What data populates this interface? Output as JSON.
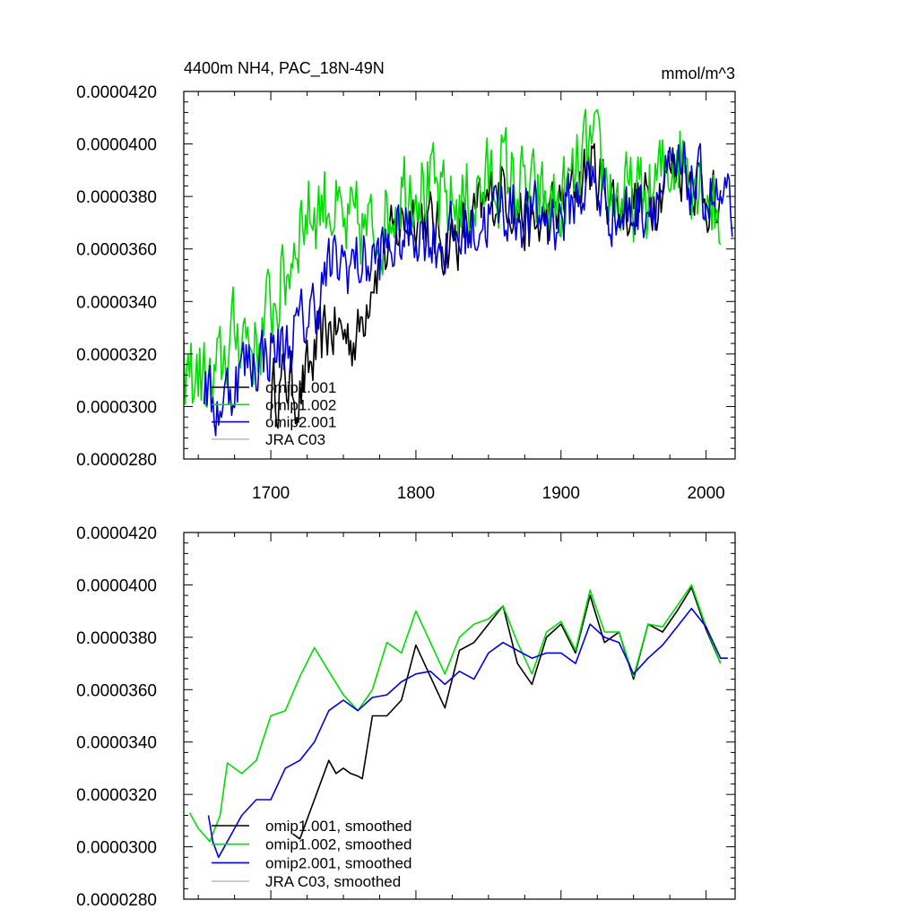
{
  "chart_data": [
    {
      "type": "line",
      "panel": "top",
      "title_left": "4400m NH4, PAC_18N-49N",
      "title_right": "mmol/m^3",
      "xlabel": "",
      "ylabel": "",
      "xlim": [
        1640,
        2020
      ],
      "ylim": [
        2.8e-05,
        4.2e-05
      ],
      "xticks": [
        1700,
        1800,
        1900,
        2000
      ],
      "xtick_labels": [
        "1700",
        "1800",
        "1900",
        "2000"
      ],
      "yticks": [
        2.8e-05,
        3e-05,
        3.2e-05,
        3.4e-05,
        3.6e-05,
        3.8e-05,
        4e-05,
        4.2e-05
      ],
      "ytick_labels": [
        "0.0000280",
        "0.0000300",
        "0.0000320",
        "0.0000340",
        "0.0000360",
        "0.0000380",
        "0.0000400",
        "0.0000420"
      ],
      "legend_placement": "bottom-left",
      "series": [
        {
          "name": "omip1.001",
          "color": "#000000",
          "noise": 1.2e-06,
          "x": [
            1700,
            1710,
            1720,
            1730,
            1740,
            1750,
            1760,
            1770,
            1780,
            1790,
            1800,
            1820,
            1840,
            1860,
            1880,
            1900,
            1920,
            1940,
            1960,
            1980,
            2000,
            2010
          ],
          "values": [
            3.05e-05,
            3.1e-05,
            3.05e-05,
            3.18e-05,
            3.3e-05,
            3.28e-05,
            3.26e-05,
            3.52e-05,
            3.58e-05,
            3.7e-05,
            3.76e-05,
            3.62e-05,
            3.7e-05,
            3.85e-05,
            3.66e-05,
            3.76e-05,
            3.92e-05,
            3.76e-05,
            3.78e-05,
            3.94e-05,
            3.82e-05,
            3.7e-05
          ]
        },
        {
          "name": "omip1.002",
          "color": "#00dd00",
          "noise": 1.6e-06,
          "x": [
            1640,
            1650,
            1660,
            1670,
            1680,
            1690,
            1700,
            1710,
            1720,
            1730,
            1740,
            1750,
            1760,
            1770,
            1780,
            1790,
            1800,
            1820,
            1840,
            1860,
            1880,
            1900,
            1920,
            1940,
            1960,
            1980,
            2000,
            2010
          ],
          "values": [
            3.1e-05,
            3.13e-05,
            3.05e-05,
            3.22e-05,
            3.31e-05,
            3.22e-05,
            3.38e-05,
            3.48e-05,
            3.72e-05,
            3.75e-05,
            3.8e-05,
            3.65e-05,
            3.68e-05,
            3.65e-05,
            3.72e-05,
            3.85e-05,
            3.88e-05,
            3.75e-05,
            3.8e-05,
            3.9e-05,
            3.78e-05,
            3.76e-05,
            3.97e-05,
            3.78e-05,
            3.78e-05,
            3.98e-05,
            3.85e-05,
            3.7e-05
          ]
        },
        {
          "name": "omip2.001",
          "color": "#0000dd",
          "noise": 1.2e-06,
          "x": [
            1654,
            1660,
            1670,
            1680,
            1690,
            1700,
            1710,
            1720,
            1730,
            1740,
            1750,
            1760,
            1770,
            1780,
            1790,
            1800,
            1820,
            1840,
            1860,
            1880,
            1900,
            1920,
            1940,
            1960,
            1980,
            2000,
            2018
          ],
          "values": [
            3.1e-05,
            2.98e-05,
            3.05e-05,
            3.15e-05,
            3.18e-05,
            3.22e-05,
            3.22e-05,
            3.3e-05,
            3.38e-05,
            3.52e-05,
            3.55e-05,
            3.55e-05,
            3.55e-05,
            3.6e-05,
            3.64e-05,
            3.68e-05,
            3.62e-05,
            3.68e-05,
            3.76e-05,
            3.72e-05,
            3.72e-05,
            3.86e-05,
            3.72e-05,
            3.78e-05,
            3.88e-05,
            3.82e-05,
            3.72e-05
          ]
        },
        {
          "name": "JRA C03",
          "color": "#c0c0c0",
          "x": [],
          "values": []
        }
      ]
    },
    {
      "type": "line",
      "panel": "bottom",
      "xlabel": "",
      "ylabel": "",
      "xlim": [
        1640,
        2020
      ],
      "ylim": [
        2.8e-05,
        4.2e-05
      ],
      "xticks": [
        1700,
        1800,
        1900,
        2000
      ],
      "yticks": [
        2.8e-05,
        3e-05,
        3.2e-05,
        3.4e-05,
        3.6e-05,
        3.8e-05,
        4e-05,
        4.2e-05
      ],
      "ytick_labels": [
        "0.0000280",
        "0.0000300",
        "0.0000320",
        "0.0000340",
        "0.0000360",
        "0.0000380",
        "0.0000400",
        "0.0000420"
      ],
      "legend_placement": "bottom-left",
      "series": [
        {
          "name": "omip1.001, smoothed",
          "color": "#000000",
          "x": [
            1715,
            1720,
            1730,
            1740,
            1745,
            1750,
            1755,
            1760,
            1763,
            1770,
            1780,
            1790,
            1800,
            1810,
            1820,
            1830,
            1840,
            1850,
            1860,
            1870,
            1880,
            1890,
            1900,
            1910,
            1920,
            1930,
            1940,
            1950,
            1960,
            1970,
            1980,
            1990,
            2000,
            2010
          ],
          "values": [
            3.05e-05,
            3.03e-05,
            3.18e-05,
            3.33e-05,
            3.28e-05,
            3.3e-05,
            3.28e-05,
            3.27e-05,
            3.26e-05,
            3.5e-05,
            3.5e-05,
            3.56e-05,
            3.77e-05,
            3.65e-05,
            3.53e-05,
            3.75e-05,
            3.78e-05,
            3.85e-05,
            3.92e-05,
            3.7e-05,
            3.62e-05,
            3.8e-05,
            3.85e-05,
            3.74e-05,
            3.96e-05,
            3.78e-05,
            3.82e-05,
            3.64e-05,
            3.85e-05,
            3.82e-05,
            3.9e-05,
            3.99e-05,
            3.83e-05,
            3.7e-05
          ]
        },
        {
          "name": "omip1.002, smoothed",
          "color": "#00dd00",
          "x": [
            1644,
            1650,
            1658,
            1665,
            1670,
            1680,
            1690,
            1700,
            1710,
            1720,
            1730,
            1740,
            1750,
            1760,
            1770,
            1780,
            1790,
            1800,
            1810,
            1820,
            1830,
            1840,
            1850,
            1860,
            1870,
            1880,
            1890,
            1900,
            1910,
            1920,
            1930,
            1940,
            1950,
            1960,
            1970,
            1980,
            1990,
            2000,
            2010
          ],
          "values": [
            3.13e-05,
            3.07e-05,
            3.02e-05,
            3.12e-05,
            3.32e-05,
            3.28e-05,
            3.33e-05,
            3.5e-05,
            3.52e-05,
            3.65e-05,
            3.76e-05,
            3.67e-05,
            3.58e-05,
            3.52e-05,
            3.6e-05,
            3.78e-05,
            3.74e-05,
            3.9e-05,
            3.78e-05,
            3.66e-05,
            3.8e-05,
            3.85e-05,
            3.87e-05,
            3.92e-05,
            3.78e-05,
            3.66e-05,
            3.82e-05,
            3.86e-05,
            3.75e-05,
            3.98e-05,
            3.82e-05,
            3.82e-05,
            3.65e-05,
            3.85e-05,
            3.84e-05,
            3.92e-05,
            4e-05,
            3.84e-05,
            3.7e-05
          ]
        },
        {
          "name": "omip2.001, smoothed",
          "color": "#0000dd",
          "x": [
            1657,
            1660,
            1664,
            1670,
            1680,
            1690,
            1700,
            1710,
            1720,
            1730,
            1740,
            1750,
            1760,
            1770,
            1780,
            1790,
            1800,
            1810,
            1820,
            1830,
            1840,
            1850,
            1860,
            1870,
            1880,
            1890,
            1900,
            1910,
            1920,
            1930,
            1940,
            1950,
            1960,
            1970,
            1980,
            1990,
            2000,
            2010,
            2015
          ],
          "values": [
            3.12e-05,
            3.02e-05,
            2.96e-05,
            3.02e-05,
            3.12e-05,
            3.18e-05,
            3.18e-05,
            3.3e-05,
            3.33e-05,
            3.4e-05,
            3.52e-05,
            3.56e-05,
            3.52e-05,
            3.57e-05,
            3.58e-05,
            3.63e-05,
            3.66e-05,
            3.67e-05,
            3.62e-05,
            3.67e-05,
            3.64e-05,
            3.74e-05,
            3.78e-05,
            3.75e-05,
            3.72e-05,
            3.74e-05,
            3.74e-05,
            3.7e-05,
            3.85e-05,
            3.8e-05,
            3.78e-05,
            3.66e-05,
            3.72e-05,
            3.77e-05,
            3.84e-05,
            3.91e-05,
            3.84e-05,
            3.72e-05,
            3.72e-05
          ]
        },
        {
          "name": "JRA C03, smoothed",
          "color": "#c0c0c0",
          "x": [],
          "values": []
        }
      ]
    }
  ]
}
